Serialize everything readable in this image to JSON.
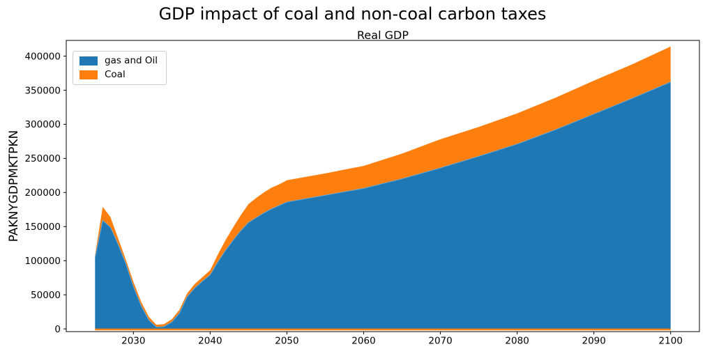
{
  "figure": {
    "suptitle": "GDP impact of coal and non-coal carbon taxes"
  },
  "chart_data": {
    "type": "area",
    "stacked": true,
    "title": "Real GDP",
    "suptitle": "GDP impact of coal and non-coal carbon taxes",
    "xlabel": "",
    "ylabel": "PAKNYGDPMKTPKN",
    "x": [
      2025,
      2026,
      2027,
      2028,
      2029,
      2030,
      2031,
      2032,
      2033,
      2034,
      2035,
      2036,
      2037,
      2038,
      2039,
      2040,
      2041,
      2042,
      2043,
      2044,
      2045,
      2046,
      2047,
      2048,
      2049,
      2050,
      2052,
      2055,
      2060,
      2065,
      2070,
      2075,
      2080,
      2085,
      2090,
      2095,
      2100
    ],
    "series": [
      {
        "name": "gas and Oil",
        "color": "#1f77b4",
        "values": [
          104000,
          159000,
          149000,
          124000,
          96000,
          62000,
          34000,
          13000,
          2500,
          3500,
          10000,
          23000,
          47000,
          60000,
          70000,
          79000,
          98000,
          115000,
          130000,
          144000,
          156000,
          163000,
          170000,
          176000,
          181000,
          186000,
          190000,
          196000,
          206000,
          220000,
          236000,
          253000,
          271000,
          292000,
          315000,
          338000,
          362000
        ]
      },
      {
        "name": "Coal",
        "color": "#ff7f0e",
        "values": [
          4000,
          20000,
          15000,
          9000,
          6000,
          7000,
          6000,
          5000,
          3500,
          3500,
          4000,
          5000,
          5000,
          6000,
          6000,
          7000,
          11000,
          15000,
          19000,
          23000,
          27000,
          29000,
          30000,
          31000,
          31000,
          32000,
          32000,
          32000,
          33000,
          37000,
          42000,
          43000,
          45000,
          47000,
          49000,
          50000,
          52000
        ]
      }
    ],
    "xticks": [
      2030,
      2040,
      2050,
      2060,
      2070,
      2080,
      2090,
      2100
    ],
    "yticks": [
      0,
      50000,
      100000,
      150000,
      200000,
      250000,
      300000,
      350000,
      400000
    ],
    "xlim": [
      2021.25,
      2103.75
    ],
    "ylim": [
      -4000,
      423000
    ],
    "grid": false,
    "legend_position": "upper left",
    "frame_color": "#000000",
    "plot_bg": "#ffffff",
    "gas_top_edge_color": "#5fa8d8",
    "baseline_line": {
      "color": "#ff7f0e",
      "width": 2.5
    }
  }
}
